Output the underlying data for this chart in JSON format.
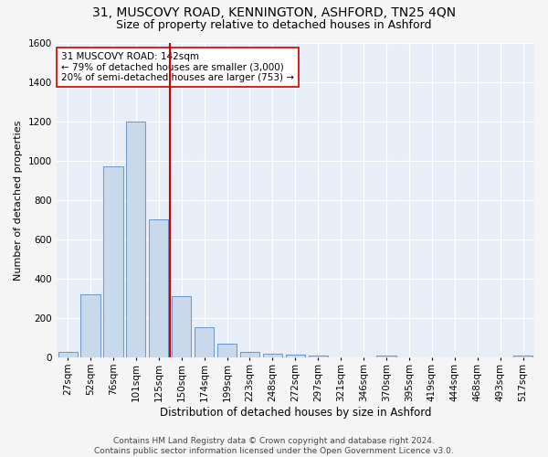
{
  "title": "31, MUSCOVY ROAD, KENNINGTON, ASHFORD, TN25 4QN",
  "subtitle": "Size of property relative to detached houses in Ashford",
  "xlabel": "Distribution of detached houses by size in Ashford",
  "ylabel": "Number of detached properties",
  "categories": [
    "27sqm",
    "52sqm",
    "76sqm",
    "101sqm",
    "125sqm",
    "150sqm",
    "174sqm",
    "199sqm",
    "223sqm",
    "248sqm",
    "272sqm",
    "297sqm",
    "321sqm",
    "346sqm",
    "370sqm",
    "395sqm",
    "419sqm",
    "444sqm",
    "468sqm",
    "493sqm",
    "517sqm"
  ],
  "values": [
    30,
    320,
    970,
    1200,
    700,
    310,
    155,
    70,
    30,
    18,
    13,
    10,
    1,
    1,
    12,
    1,
    1,
    1,
    1,
    1,
    10
  ],
  "bar_color": "#c9d9ec",
  "bar_edge_color": "#5b8abf",
  "vline_color": "#cc0000",
  "annotation_text": "31 MUSCOVY ROAD: 142sqm\n← 79% of detached houses are smaller (3,000)\n20% of semi-detached houses are larger (753) →",
  "annotation_box_color": "#ffffff",
  "annotation_box_edge": "#cc0000",
  "ylim": [
    0,
    1600
  ],
  "yticks": [
    0,
    200,
    400,
    600,
    800,
    1000,
    1200,
    1400,
    1600
  ],
  "footer": "Contains HM Land Registry data © Crown copyright and database right 2024.\nContains public sector information licensed under the Open Government Licence v3.0.",
  "bg_color": "#e8eef7",
  "grid_color": "#ffffff",
  "fig_bg_color": "#f5f5f5",
  "title_fontsize": 10,
  "subtitle_fontsize": 9,
  "xlabel_fontsize": 8.5,
  "ylabel_fontsize": 8,
  "tick_fontsize": 7.5,
  "annotation_fontsize": 7.5,
  "footer_fontsize": 6.5
}
